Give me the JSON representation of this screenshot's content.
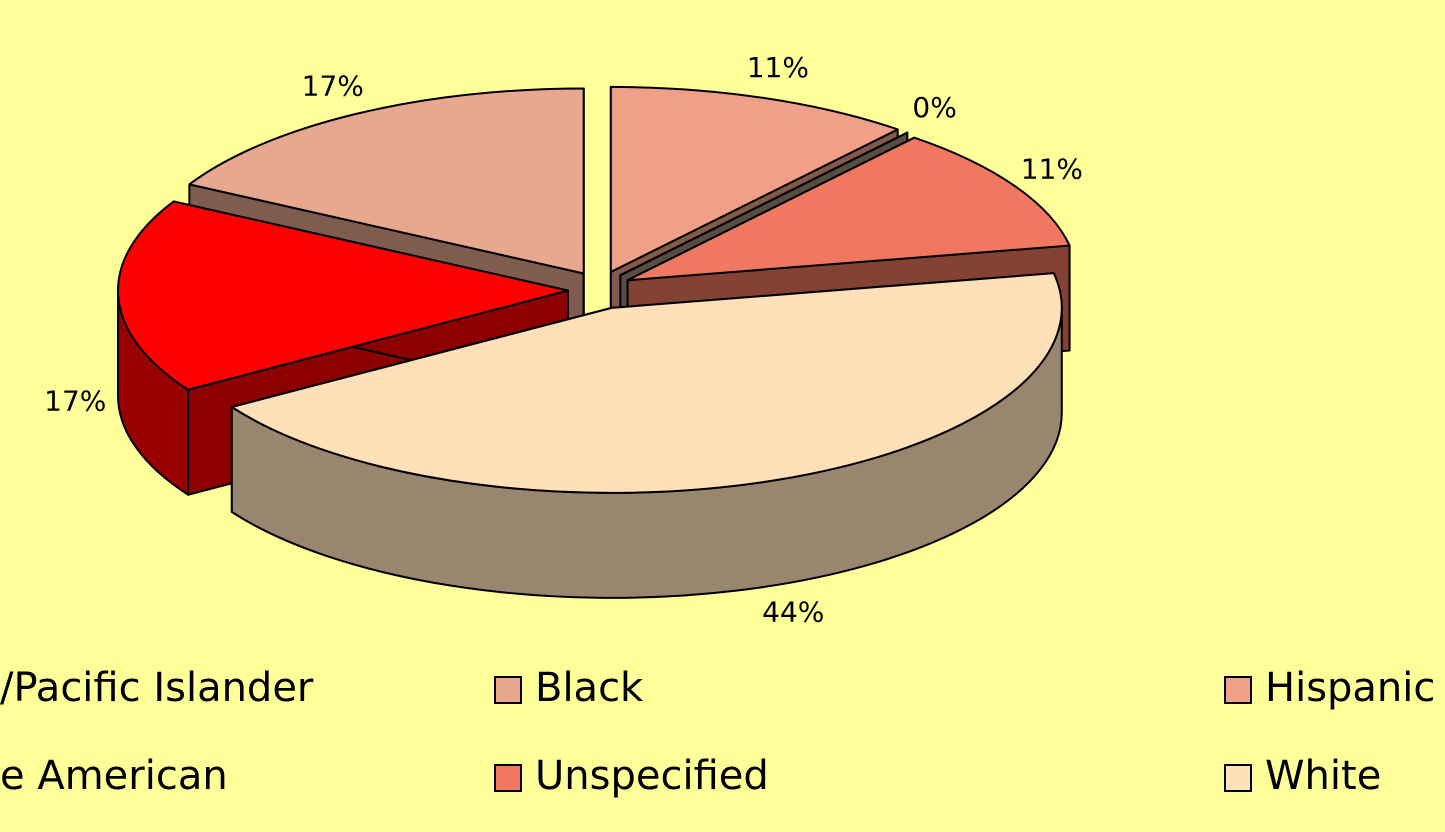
{
  "chart_data": {
    "type": "pie",
    "categories": [
      "/Pacific Islander",
      "Black",
      "Hispanic",
      "e American",
      "Unspecified",
      "White"
    ],
    "values": [
      17,
      17,
      11,
      0,
      11,
      44
    ],
    "value_labels": [
      "17%",
      "17%",
      "11%",
      "0%",
      "11%",
      "44%"
    ],
    "colors": [
      "#ff0000",
      "#e8a890",
      "#f0a088",
      "#a08c78",
      "#f07860",
      "#ffe0b8"
    ],
    "legend": "bottom"
  }
}
